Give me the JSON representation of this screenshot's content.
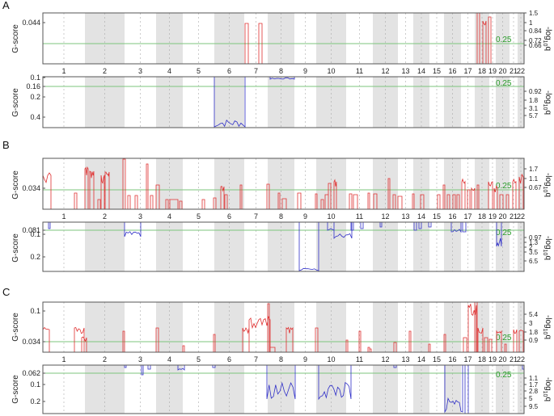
{
  "figure": {
    "x_axis": {
      "chromosomes": [
        "1",
        "2",
        "3",
        "4",
        "5",
        "6",
        "7",
        "8",
        "9",
        "10",
        "11",
        "12",
        "13",
        "14",
        "15",
        "16",
        "17",
        "18",
        "19",
        "20",
        "21",
        "22"
      ]
    },
    "threshold_label": "0.25",
    "y_label": "G-score",
    "right_label": "-log10q",
    "colors": {
      "amp": "#e03030",
      "del": "#3030c8",
      "threshold": "#7cc47c",
      "band": "#e3e3e3"
    }
  },
  "chart_data": [
    {
      "panel": "A",
      "type": "line",
      "title": "A",
      "subplots": [
        {
          "name": "amplification",
          "ylabel": "G-score",
          "yticks": [
            "0.044"
          ],
          "right_ticks": [
            "1.5",
            "1",
            "0.84",
            "0.72",
            "0.66"
          ],
          "right_label": "-log10q",
          "threshold": 0.25,
          "peaks": [
            {
              "chr": "7",
              "x": 0.62,
              "h": 0.8
            },
            {
              "chr": "7",
              "x": 0.67,
              "h": 0.8
            },
            {
              "chr": "18",
              "x": 0.93,
              "h": 1.0
            }
          ]
        },
        {
          "name": "deletion",
          "ylabel": "G-score",
          "yticks": [
            "0.1",
            "0.16",
            "0.2",
            "0.4"
          ],
          "right_ticks": [
            "0.92",
            "1.8",
            "3.1",
            "5.7"
          ],
          "right_label": "-log10q",
          "threshold": 0.25,
          "troughs": [
            {
              "chr": "6",
              "depth": 0.95
            },
            {
              "chr": "8",
              "depth": 0.1
            }
          ]
        }
      ]
    },
    {
      "panel": "B",
      "type": "line",
      "title": "B",
      "subplots": [
        {
          "name": "amplification",
          "ylabel": "G-score",
          "yticks": [
            "0.034"
          ],
          "right_ticks": [
            "1.7",
            "1.1",
            "0.67"
          ],
          "right_label": "-log10q",
          "threshold": 0.25
        },
        {
          "name": "deletion",
          "ylabel": "G-score",
          "yticks": [
            "0.081",
            "0.1",
            "0.2"
          ],
          "right_ticks": [
            "0.97",
            "1.3",
            "2",
            "3.5",
            "6.5"
          ],
          "right_label": "-log10q",
          "threshold": 0.25,
          "troughs": [
            {
              "chr": "9",
              "depth": 1.0
            },
            {
              "chr": "3",
              "depth": 0.3
            },
            {
              "chr": "20",
              "depth": 0.35
            }
          ]
        }
      ]
    },
    {
      "panel": "C",
      "type": "line",
      "title": "C",
      "subplots": [
        {
          "name": "amplification",
          "ylabel": "G-score",
          "yticks": [
            "0.1",
            "0.034"
          ],
          "right_ticks": [
            "5.4",
            "3",
            "1.8",
            "0.9"
          ],
          "right_label": "-log10q",
          "threshold": 0.25
        },
        {
          "name": "deletion",
          "ylabel": "G-score",
          "yticks": [
            "0.062",
            "0.1",
            "0.2"
          ],
          "right_ticks": [
            "1.1",
            "1.7",
            "2.8",
            "5",
            "9.5"
          ],
          "right_label": "-log10q",
          "threshold": 0.25,
          "troughs": [
            {
              "chr": "8",
              "depth": 0.65
            },
            {
              "chr": "11",
              "depth": 0.55
            },
            {
              "chr": "17",
              "depth": 1.0
            }
          ]
        }
      ]
    }
  ],
  "labels": {
    "panel_a": "A",
    "panel_b": "B",
    "panel_c": "C",
    "a_top_y": [
      "0.044"
    ],
    "a_top_r": [
      "1.5",
      "1",
      "0.84",
      "0.72",
      "0.66"
    ],
    "a_bot_y": [
      "0.1",
      "0.16",
      "0.2",
      "0.4"
    ],
    "a_bot_r": [
      "0.92",
      "1.8",
      "3.1",
      "5.7"
    ],
    "b_top_y": [
      "0.034"
    ],
    "b_top_r": [
      "1.7",
      "1.1",
      "0.67"
    ],
    "b_bot_y": [
      "0.081",
      "0.1",
      "0.2"
    ],
    "b_bot_r": [
      "0.97",
      "1.3",
      "2",
      "3.5",
      "6.5"
    ],
    "c_top_y": [
      "0.1",
      "0.034"
    ],
    "c_top_r": [
      "5.4",
      "3",
      "1.8",
      "0.9"
    ],
    "c_bot_y": [
      "0.062",
      "0.1",
      "0.2"
    ],
    "c_bot_r": [
      "1.1",
      "1.7",
      "2.8",
      "5",
      "9.5"
    ]
  }
}
